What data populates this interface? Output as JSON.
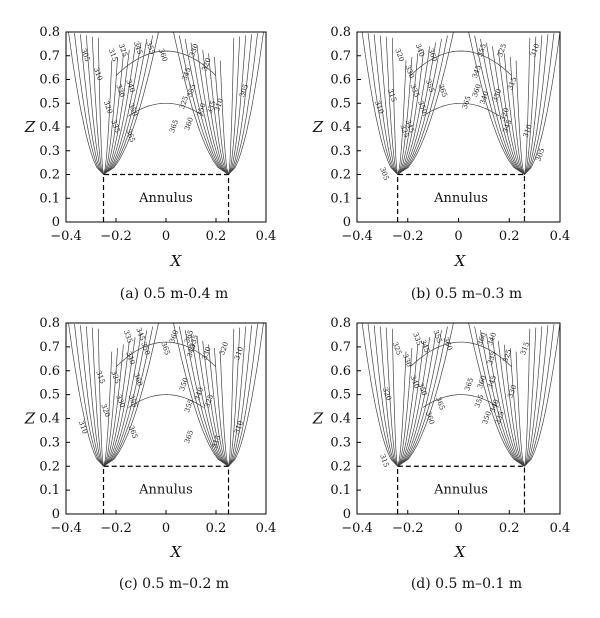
{
  "chart_data": [
    {
      "type": "contour",
      "caption": "(a) 0.5 m-0.4 m",
      "xlabel": "X",
      "ylabel": "Z",
      "xlim": [
        -0.4,
        0.4
      ],
      "ylim": [
        0,
        0.8
      ],
      "x_ticks": [
        "−0.4",
        "−0.2",
        "0",
        "0.2",
        "0.4"
      ],
      "y_ticks": [
        "0",
        "0.1",
        "0.2",
        "0.3",
        "0.4",
        "0.5",
        "0.6",
        "0.7",
        "0.8"
      ],
      "annulus": {
        "label": "Annulus",
        "x": [
          -0.25,
          0.25
        ],
        "z_top": 0.2
      },
      "contour_labels": [
        {
          "text": "305",
          "x": -0.33,
          "z": 0.7
        },
        {
          "text": "310",
          "x": -0.28,
          "z": 0.62
        },
        {
          "text": "315",
          "x": -0.22,
          "z": 0.7
        },
        {
          "text": "320",
          "x": -0.24,
          "z": 0.48
        },
        {
          "text": "325",
          "x": -0.18,
          "z": 0.72
        },
        {
          "text": "330",
          "x": -0.19,
          "z": 0.55
        },
        {
          "text": "335",
          "x": -0.21,
          "z": 0.4
        },
        {
          "text": "340",
          "x": -0.15,
          "z": 0.57
        },
        {
          "text": "345",
          "x": -0.12,
          "z": 0.73
        },
        {
          "text": "350",
          "x": -0.14,
          "z": 0.47
        },
        {
          "text": "355",
          "x": -0.07,
          "z": 0.73
        },
        {
          "text": "360",
          "x": -0.02,
          "z": 0.7
        },
        {
          "text": "365",
          "x": -0.15,
          "z": 0.36
        },
        {
          "text": "330",
          "x": 0.12,
          "z": 0.72
        },
        {
          "text": "325",
          "x": 0.08,
          "z": 0.5
        },
        {
          "text": "355",
          "x": 0.11,
          "z": 0.55
        },
        {
          "text": "345",
          "x": 0.09,
          "z": 0.62
        },
        {
          "text": "320",
          "x": 0.17,
          "z": 0.66
        },
        {
          "text": "360",
          "x": 0.1,
          "z": 0.41
        },
        {
          "text": "365",
          "x": 0.04,
          "z": 0.4
        },
        {
          "text": "350",
          "x": 0.15,
          "z": 0.47
        },
        {
          "text": "335",
          "x": 0.19,
          "z": 0.48
        },
        {
          "text": "310",
          "x": 0.22,
          "z": 0.49
        },
        {
          "text": "305",
          "x": 0.32,
          "z": 0.55
        }
      ]
    },
    {
      "type": "contour",
      "caption": "(b) 0.5 m–0.3 m",
      "xlabel": "X",
      "ylabel": "Z",
      "xlim": [
        -0.4,
        0.4
      ],
      "ylim": [
        0,
        0.8
      ],
      "x_ticks": [
        "−0.4",
        "−0.2",
        "0",
        "0.2",
        "0.4"
      ],
      "y_ticks": [
        "0",
        "0.1",
        "0.2",
        "0.3",
        "0.4",
        "0.5",
        "0.6",
        "0.7",
        "0.8"
      ],
      "annulus": {
        "label": "Annulus",
        "x": [
          -0.24,
          0.26
        ],
        "z_top": 0.2
      },
      "contour_labels": [
        {
          "text": "310",
          "x": -0.32,
          "z": 0.48
        },
        {
          "text": "315",
          "x": -0.27,
          "z": 0.53
        },
        {
          "text": "320",
          "x": -0.24,
          "z": 0.7
        },
        {
          "text": "325",
          "x": -0.22,
          "z": 0.38
        },
        {
          "text": "330",
          "x": -0.2,
          "z": 0.63
        },
        {
          "text": "335",
          "x": -0.18,
          "z": 0.55
        },
        {
          "text": "340",
          "x": -0.16,
          "z": 0.72
        },
        {
          "text": "345",
          "x": -0.2,
          "z": 0.4
        },
        {
          "text": "350",
          "x": -0.15,
          "z": 0.48
        },
        {
          "text": "355",
          "x": -0.12,
          "z": 0.57
        },
        {
          "text": "360",
          "x": -0.11,
          "z": 0.7
        },
        {
          "text": "365",
          "x": -0.07,
          "z": 0.55
        },
        {
          "text": "305",
          "x": -0.3,
          "z": 0.2
        },
        {
          "text": "355",
          "x": 0.1,
          "z": 0.72
        },
        {
          "text": "345",
          "x": 0.08,
          "z": 0.63
        },
        {
          "text": "325",
          "x": 0.18,
          "z": 0.72
        },
        {
          "text": "360",
          "x": 0.08,
          "z": 0.55
        },
        {
          "text": "340",
          "x": 0.11,
          "z": 0.52
        },
        {
          "text": "330",
          "x": 0.16,
          "z": 0.53
        },
        {
          "text": "365",
          "x": 0.04,
          "z": 0.5
        },
        {
          "text": "320",
          "x": 0.19,
          "z": 0.45
        },
        {
          "text": "315",
          "x": 0.22,
          "z": 0.58
        },
        {
          "text": "345",
          "x": 0.2,
          "z": 0.4
        },
        {
          "text": "310",
          "x": 0.28,
          "z": 0.38
        },
        {
          "text": "310",
          "x": 0.31,
          "z": 0.72
        },
        {
          "text": "305",
          "x": 0.33,
          "z": 0.28
        }
      ]
    },
    {
      "type": "contour",
      "caption": "(c) 0.5 m–0.2 m",
      "xlabel": "X",
      "ylabel": "Z",
      "xlim": [
        -0.4,
        0.4
      ],
      "ylim": [
        0,
        0.8
      ],
      "x_ticks": [
        "−0.4",
        "−0.2",
        "0",
        "0.2",
        "0.4"
      ],
      "y_ticks": [
        "0",
        "0.1",
        "0.2",
        "0.3",
        "0.4",
        "0.5",
        "0.6",
        "0.7",
        "0.8"
      ],
      "annulus": {
        "label": "Annulus",
        "x": [
          -0.25,
          0.25
        ],
        "z_top": 0.2
      },
      "contour_labels": [
        {
          "text": "310",
          "x": -0.34,
          "z": 0.36
        },
        {
          "text": "315",
          "x": -0.27,
          "z": 0.57
        },
        {
          "text": "320",
          "x": -0.25,
          "z": 0.43
        },
        {
          "text": "325",
          "x": -0.21,
          "z": 0.57
        },
        {
          "text": "330",
          "x": -0.19,
          "z": 0.47
        },
        {
          "text": "335",
          "x": -0.16,
          "z": 0.74
        },
        {
          "text": "340",
          "x": -0.15,
          "z": 0.65
        },
        {
          "text": "345",
          "x": -0.11,
          "z": 0.75
        },
        {
          "text": "350",
          "x": -0.09,
          "z": 0.69
        },
        {
          "text": "355",
          "x": -0.14,
          "z": 0.47
        },
        {
          "text": "360",
          "x": -0.12,
          "z": 0.56
        },
        {
          "text": "365",
          "x": -0.14,
          "z": 0.34
        },
        {
          "text": "365",
          "x": -0.01,
          "z": 0.69
        },
        {
          "text": "360",
          "x": 0.04,
          "z": 0.74
        },
        {
          "text": "365",
          "x": 0.1,
          "z": 0.74
        },
        {
          "text": "345",
          "x": 0.11,
          "z": 0.68
        },
        {
          "text": "335",
          "x": 0.12,
          "z": 0.72
        },
        {
          "text": "330",
          "x": 0.17,
          "z": 0.67
        },
        {
          "text": "350",
          "x": 0.08,
          "z": 0.54
        },
        {
          "text": "340",
          "x": 0.14,
          "z": 0.5
        },
        {
          "text": "355",
          "x": 0.1,
          "z": 0.45
        },
        {
          "text": "325",
          "x": 0.18,
          "z": 0.47
        },
        {
          "text": "320",
          "x": 0.24,
          "z": 0.69
        },
        {
          "text": "365",
          "x": 0.1,
          "z": 0.32
        },
        {
          "text": "315",
          "x": 0.21,
          "z": 0.3
        },
        {
          "text": "310",
          "x": 0.3,
          "z": 0.36
        },
        {
          "text": "310",
          "x": 0.3,
          "z": 0.67
        }
      ]
    },
    {
      "type": "contour",
      "caption": "(d) 0.5 m–0.1 m",
      "xlabel": "X",
      "ylabel": "Z",
      "xlim": [
        -0.4,
        0.4
      ],
      "ylim": [
        0,
        0.8
      ],
      "x_ticks": [
        "−0.4",
        "−0.2",
        "0",
        "0.2",
        "0.4"
      ],
      "y_ticks": [
        "0",
        "0.1",
        "0.2",
        "0.3",
        "0.4",
        "0.5",
        "0.6",
        "0.7",
        "0.8"
      ],
      "annulus": {
        "label": "Annulus",
        "x": [
          -0.24,
          0.26
        ],
        "z_top": 0.2
      },
      "contour_labels": [
        {
          "text": "315",
          "x": -0.3,
          "z": 0.22
        },
        {
          "text": "320",
          "x": -0.29,
          "z": 0.5
        },
        {
          "text": "325",
          "x": -0.25,
          "z": 0.69
        },
        {
          "text": "330",
          "x": -0.21,
          "z": 0.64
        },
        {
          "text": "335",
          "x": -0.17,
          "z": 0.73
        },
        {
          "text": "340",
          "x": -0.18,
          "z": 0.55
        },
        {
          "text": "345",
          "x": -0.14,
          "z": 0.7
        },
        {
          "text": "350",
          "x": -0.15,
          "z": 0.52
        },
        {
          "text": "355",
          "x": -0.09,
          "z": 0.74
        },
        {
          "text": "360",
          "x": -0.12,
          "z": 0.4
        },
        {
          "text": "365",
          "x": -0.08,
          "z": 0.46
        },
        {
          "text": "360",
          "x": -0.05,
          "z": 0.71
        },
        {
          "text": "360",
          "x": 0.1,
          "z": 0.73
        },
        {
          "text": "340",
          "x": 0.14,
          "z": 0.73
        },
        {
          "text": "335",
          "x": 0.14,
          "z": 0.65
        },
        {
          "text": "365",
          "x": 0.05,
          "z": 0.54
        },
        {
          "text": "360",
          "x": 0.1,
          "z": 0.55
        },
        {
          "text": "355",
          "x": 0.09,
          "z": 0.47
        },
        {
          "text": "345",
          "x": 0.14,
          "z": 0.55
        },
        {
          "text": "340",
          "x": 0.15,
          "z": 0.45
        },
        {
          "text": "325",
          "x": 0.2,
          "z": 0.66
        },
        {
          "text": "350",
          "x": 0.12,
          "z": 0.4
        },
        {
          "text": "335",
          "x": 0.17,
          "z": 0.4
        },
        {
          "text": "315",
          "x": 0.27,
          "z": 0.69
        },
        {
          "text": "330",
          "x": 0.22,
          "z": 0.51
        }
      ]
    }
  ]
}
